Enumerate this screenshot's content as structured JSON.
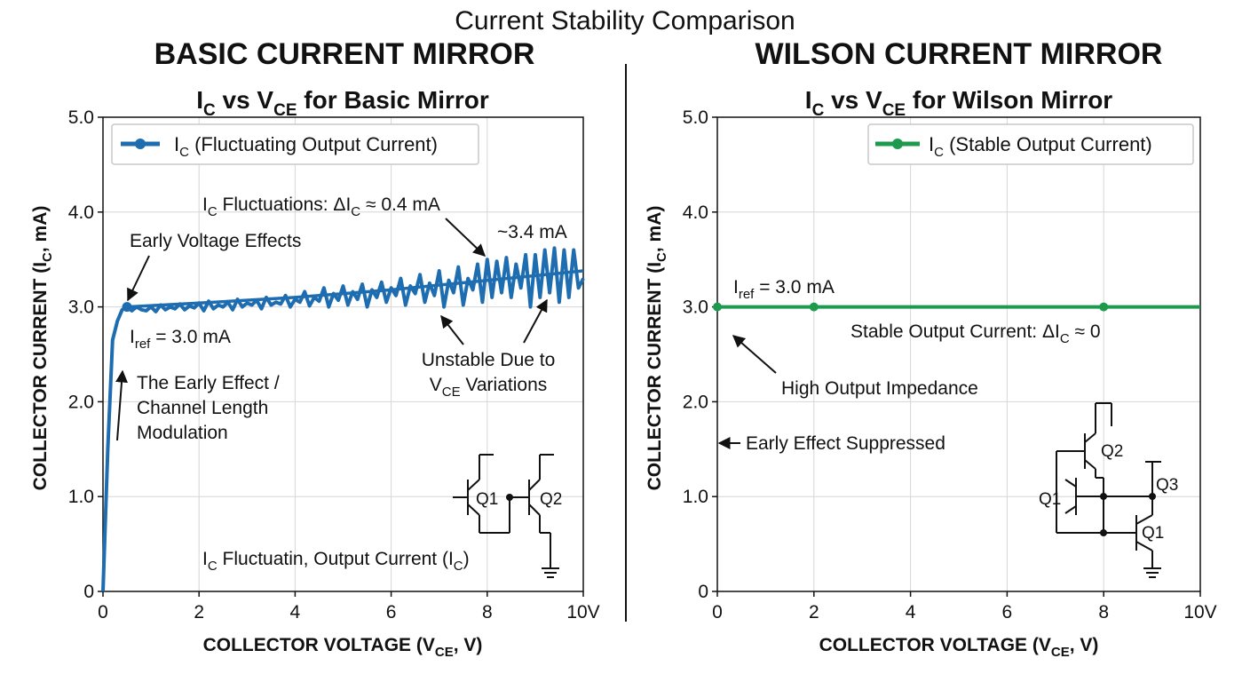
{
  "figure": {
    "title": "Current Stability Comparison",
    "panels": [
      {
        "heading": "BASIC CURRENT MIRROR"
      },
      {
        "heading": "WILSON CURRENT MIRROR"
      }
    ]
  },
  "chart_data": [
    {
      "type": "line",
      "title": "I_C vs V_CE for Basic Mirror",
      "xlabel": "COLLECTOR VOLTAGE (V_CE, V)",
      "ylabel": "COLLECTOR CURRENT (I_C, mA)",
      "xlim": [
        0,
        10
      ],
      "ylim": [
        0,
        5
      ],
      "x_ticks": [
        "0",
        "2",
        "4",
        "6",
        "8",
        "10V"
      ],
      "y_ticks": [
        "0",
        "1.0",
        "2.0",
        "3.0",
        "4.0",
        "5.0"
      ],
      "grid": true,
      "legend_position": "top-left",
      "series": [
        {
          "name": "I_C (Fluctuating Output Current)",
          "color": "#1f6db1",
          "x": [
            0,
            0.1,
            0.2,
            0.3,
            0.4,
            0.5,
            0.6,
            0.7,
            0.8,
            0.9,
            1.0,
            1.1,
            1.2,
            1.3,
            1.4,
            1.5,
            1.6,
            1.7,
            1.8,
            1.9,
            2.0,
            2.1,
            2.2,
            2.3,
            2.4,
            2.5,
            2.6,
            2.7,
            2.8,
            2.9,
            3.0,
            3.1,
            3.2,
            3.3,
            3.4,
            3.5,
            3.6,
            3.7,
            3.8,
            3.9,
            4.0,
            4.1,
            4.2,
            4.3,
            4.4,
            4.5,
            4.6,
            4.7,
            4.8,
            4.9,
            5.0,
            5.1,
            5.2,
            5.3,
            5.4,
            5.5,
            5.6,
            5.7,
            5.8,
            5.9,
            6.0,
            6.1,
            6.2,
            6.3,
            6.4,
            6.5,
            6.6,
            6.7,
            6.8,
            6.9,
            7.0,
            7.1,
            7.2,
            7.3,
            7.4,
            7.5,
            7.6,
            7.7,
            7.8,
            7.9,
            8.0,
            8.1,
            8.2,
            8.3,
            8.4,
            8.5,
            8.6,
            8.7,
            8.8,
            8.9,
            9.0,
            9.1,
            9.2,
            9.3,
            9.4,
            9.5,
            9.6,
            9.7,
            9.8,
            9.9,
            10.0
          ],
          "values": [
            0,
            1.5,
            2.65,
            2.85,
            2.97,
            3.0,
            2.96,
            3.0,
            2.97,
            2.96,
            3.0,
            2.95,
            3.02,
            2.97,
            3.0,
            2.98,
            3.03,
            2.97,
            3.01,
            2.99,
            3.04,
            2.96,
            3.06,
            2.98,
            3.02,
            3.0,
            3.05,
            2.97,
            3.08,
            3.0,
            3.04,
            3.02,
            3.07,
            2.98,
            3.1,
            3.02,
            3.05,
            3.03,
            3.12,
            3.0,
            3.08,
            3.05,
            3.16,
            3.01,
            3.1,
            3.06,
            3.2,
            3.0,
            3.14,
            3.07,
            3.22,
            3.02,
            3.16,
            3.08,
            3.24,
            3.0,
            3.18,
            3.1,
            3.26,
            3.05,
            3.2,
            3.12,
            3.3,
            3.02,
            3.22,
            3.14,
            3.34,
            3.05,
            3.25,
            3.12,
            3.38,
            3.0,
            3.28,
            3.15,
            3.42,
            3.02,
            3.3,
            3.18,
            3.45,
            3.05,
            3.5,
            3.1,
            3.48,
            3.15,
            3.52,
            3.1,
            3.45,
            3.2,
            3.55,
            3.0,
            3.55,
            3.1,
            3.6,
            3.15,
            3.62,
            3.05,
            3.6,
            3.1,
            3.6,
            3.2,
            3.3
          ]
        },
        {
          "name": "I_C trend",
          "color": "#1f6db1",
          "x": [
            0.5,
            2,
            4,
            6,
            8,
            10
          ],
          "values": [
            3.0,
            3.04,
            3.1,
            3.18,
            3.28,
            3.38
          ]
        }
      ],
      "legend": [
        "I_C (Fluctuating Output Current)"
      ],
      "annotations": {
        "fluctuations": {
          "main": "I",
          "sub": "C",
          "rest": " Fluctuations: ΔI",
          "sub2": "C",
          "tail": " ≈ 0.4 mA"
        },
        "peak": "~3.4 mA",
        "early_voltage": "Early Voltage Effects",
        "iref": {
          "main": "I",
          "sub": "ref",
          "tail": " = 3.0 mA"
        },
        "unstable_line1": "Unstable Due to",
        "unstable_line2": {
          "main": "V",
          "sub": "CE",
          "tail": " Variations"
        },
        "early_effect_lines": [
          "The Early Effect /",
          "Channel Length",
          "Modulation"
        ],
        "bottom_note": {
          "main": "I",
          "sub": "C",
          "mid": " Fluctuatin, Output Current (I",
          "sub2": "C",
          "tail": ")"
        }
      },
      "circuit": {
        "q1": "Q1",
        "q2": "Q2"
      }
    },
    {
      "type": "line",
      "title": "I_C vs V_CE for Wilson Mirror",
      "xlabel": "COLLECTOR VOLTAGE (V_CE, V)",
      "ylabel": "COLLECTOR CURRENT (I_C, mA)",
      "xlim": [
        0,
        10
      ],
      "ylim": [
        0,
        5
      ],
      "x_ticks": [
        "0",
        "2",
        "4",
        "6",
        "8",
        "10V"
      ],
      "y_ticks": [
        "0",
        "1.0",
        "2.0",
        "3.0",
        "4.0",
        "5.0"
      ],
      "grid": true,
      "legend_position": "top-right",
      "series": [
        {
          "name": "I_C (Stable Output Current)",
          "color": "#1e9a4f",
          "x": [
            0,
            2,
            4,
            6,
            8,
            10
          ],
          "values": [
            3.0,
            3.0,
            3.0,
            3.0,
            3.0,
            3.0
          ],
          "markers_at": [
            0,
            2,
            8
          ]
        }
      ],
      "legend": [
        "I_C (Stable Output Current)"
      ],
      "annotations": {
        "iref": {
          "main": "I",
          "sub": "ref",
          "tail": " = 3.0 mA"
        },
        "stable": {
          "main": "Stable Output Current: ΔI",
          "sub": "C",
          "tail": " ≈ 0"
        },
        "impedance": "High Output Impedance",
        "suppressed": "Early Effect Suppressed"
      },
      "circuit": {
        "q1": "Q1",
        "q2": "Q2",
        "q3": "Q3",
        "q1b": "Q1"
      }
    }
  ]
}
